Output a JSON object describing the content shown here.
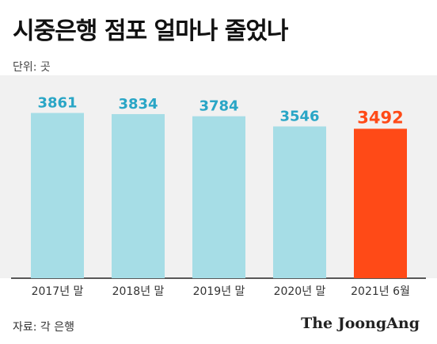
{
  "title": "시중은행 점포 얼마나 줄었나",
  "unit_label": "단위: 곳",
  "source": "자료: 각 은행",
  "brand": "The JoongAng",
  "colors": {
    "bar_default": "#a6dde6",
    "bar_highlight": "#ff4a17",
    "label_default": "#2aa6c6",
    "label_highlight": "#ff4a17",
    "background_band": "#f1f1f1"
  },
  "chart_data": {
    "type": "bar",
    "categories": [
      "2017년 말",
      "2018년 말",
      "2019년 말",
      "2020년 말",
      "2021년 6월"
    ],
    "values": [
      3861,
      3834,
      3784,
      3546,
      3492
    ],
    "highlight_index": 4,
    "data_labels": true,
    "grid": false,
    "legend": "none"
  }
}
